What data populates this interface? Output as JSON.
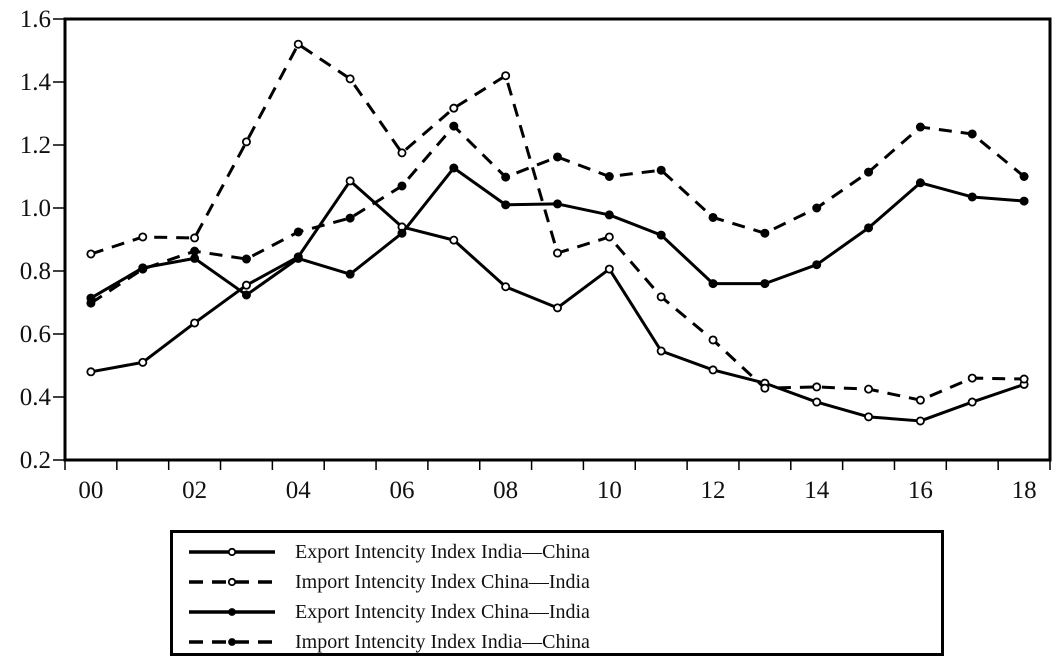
{
  "chart_data": {
    "type": "line",
    "title": "",
    "xlabel": "",
    "ylabel": "",
    "x": [
      2000,
      2001,
      2002,
      2003,
      2004,
      2005,
      2006,
      2007,
      2008,
      2009,
      2010,
      2011,
      2012,
      2013,
      2014,
      2015,
      2016,
      2017,
      2018
    ],
    "x_tick_labels": [
      "00",
      "02",
      "04",
      "06",
      "08",
      "10",
      "12",
      "14",
      "16",
      "18"
    ],
    "x_tick_values": [
      2000,
      2002,
      2004,
      2006,
      2008,
      2010,
      2012,
      2014,
      2016,
      2018
    ],
    "y_tick_labels": [
      "0.2",
      "0.4",
      "0.6",
      "0.8",
      "1.0",
      "1.2",
      "1.4",
      "1.6"
    ],
    "y_tick_values": [
      0.2,
      0.4,
      0.6,
      0.8,
      1.0,
      1.2,
      1.4,
      1.6
    ],
    "ylim": [
      0.2,
      1.6
    ],
    "xlim": [
      1999.5,
      2018.5
    ],
    "grid": false,
    "legend_position": "bottom",
    "series": [
      {
        "name": "Export Intencity Index India—China",
        "line_style": "solid",
        "marker": "open-circle",
        "values": [
          0.48,
          0.51,
          0.635,
          0.755,
          0.845,
          1.086,
          0.94,
          0.898,
          0.75,
          0.683,
          0.806,
          0.546,
          0.486,
          0.444,
          0.384,
          0.337,
          0.324,
          0.384,
          0.44
        ]
      },
      {
        "name": "Import Intencity Index China—India",
        "line_style": "dashed",
        "marker": "open-circle",
        "values": [
          0.854,
          0.908,
          0.905,
          1.21,
          1.52,
          1.41,
          1.175,
          1.317,
          1.42,
          0.857,
          0.908,
          0.718,
          0.581,
          0.428,
          0.432,
          0.425,
          0.39,
          0.46,
          0.457
        ]
      },
      {
        "name": "Export Intencity Index China—India",
        "line_style": "solid",
        "marker": "filled-circle",
        "values": [
          0.714,
          0.81,
          0.84,
          0.724,
          0.84,
          0.79,
          0.92,
          1.127,
          1.01,
          1.013,
          0.978,
          0.914,
          0.76,
          0.76,
          0.82,
          0.937,
          1.08,
          1.035,
          1.022
        ]
      },
      {
        "name": "Import Intencity Index India—China",
        "line_style": "dashed",
        "marker": "filled-circle",
        "values": [
          0.698,
          0.806,
          0.863,
          0.838,
          0.924,
          0.968,
          1.07,
          1.26,
          1.098,
          1.162,
          1.1,
          1.12,
          0.97,
          0.92,
          1.0,
          1.114,
          1.257,
          1.235,
          1.1
        ]
      }
    ]
  },
  "legend": {
    "items": [
      {
        "label": "Export Intencity Index India—China"
      },
      {
        "label": "Import Intencity Index China—India"
      },
      {
        "label": "Export Intencity Index China—India"
      },
      {
        "label": "Import Intencity Index India—China"
      }
    ]
  }
}
